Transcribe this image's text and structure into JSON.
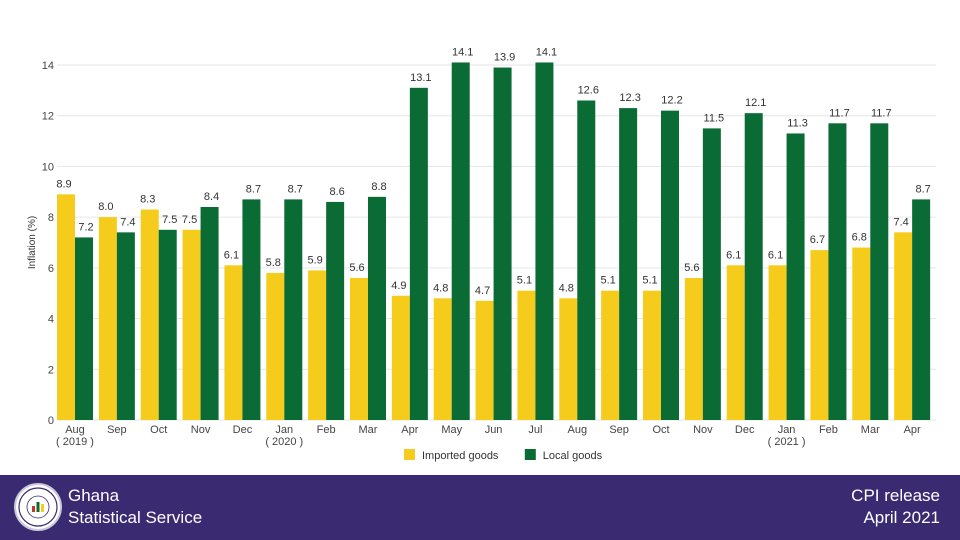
{
  "chart_data": {
    "type": "bar",
    "ylabel": "Inflation (%)",
    "ylim": [
      0,
      14
    ],
    "yticks": [
      0,
      2,
      4,
      6,
      8,
      10,
      12,
      14
    ],
    "grid": true,
    "legend_position": "bottom-center",
    "categories": [
      "Aug",
      "Sep",
      "Oct",
      "Nov",
      "Dec",
      "Jan",
      "Feb",
      "Mar",
      "Apr",
      "May",
      "Jun",
      "Jul",
      "Aug",
      "Sep",
      "Oct",
      "Nov",
      "Dec",
      "Jan",
      "Feb",
      "Mar",
      "Apr"
    ],
    "year_labels": [
      {
        "index": 0,
        "text": "( 2019 )"
      },
      {
        "index": 5,
        "text": "( 2020 )"
      },
      {
        "index": 17,
        "text": "( 2021 )"
      }
    ],
    "series": [
      {
        "name": "Imported goods",
        "color": "#f5cc1b",
        "values": [
          8.9,
          8.0,
          8.3,
          7.5,
          6.1,
          5.8,
          5.9,
          5.6,
          4.9,
          4.8,
          4.7,
          5.1,
          4.8,
          5.1,
          5.1,
          5.6,
          6.1,
          6.1,
          6.7,
          6.8,
          7.4
        ]
      },
      {
        "name": "Local goods",
        "color": "#0b6b35",
        "values": [
          7.2,
          7.4,
          7.5,
          8.4,
          8.7,
          8.7,
          8.6,
          8.8,
          13.1,
          14.1,
          13.9,
          14.1,
          12.6,
          12.3,
          12.2,
          11.5,
          12.1,
          11.3,
          11.7,
          11.7,
          8.7
        ]
      }
    ]
  },
  "footer": {
    "org_line1": "Ghana",
    "org_line2": "Statistical Service",
    "release_line1": "CPI release",
    "release_line2": "April  2021",
    "background_color": "#3a2a72",
    "logo_text_top": "STATISTICAL SERVICE",
    "logo_text_bottom": "GHANA"
  }
}
